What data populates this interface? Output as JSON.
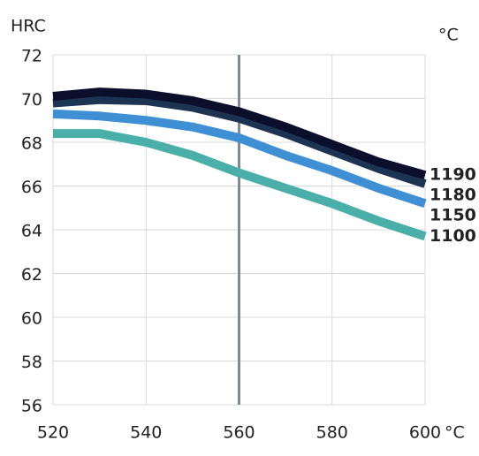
{
  "chart_data": {
    "type": "line",
    "y_label": "HRC",
    "series_unit": "°C",
    "x_unit": "°C",
    "x": [
      520,
      530,
      540,
      550,
      560,
      570,
      580,
      590,
      600
    ],
    "xlim": [
      520,
      600
    ],
    "xticks": [
      520,
      540,
      560,
      580,
      600
    ],
    "ylim": [
      56,
      72
    ],
    "yticks": [
      56,
      58,
      60,
      62,
      64,
      66,
      68,
      70,
      72
    ],
    "grid": true,
    "vline": 560,
    "series": [
      {
        "name": "1190",
        "color": "#0b0f2c",
        "label_color": "#0b0f2c",
        "values": [
          70.1,
          70.3,
          70.2,
          69.9,
          69.4,
          68.7,
          67.9,
          67.1,
          66.5
        ]
      },
      {
        "name": "1180",
        "color": "#1d3352",
        "label_color": "#5a528f",
        "values": [
          69.8,
          69.95,
          69.9,
          69.6,
          69.1,
          68.4,
          67.6,
          66.8,
          66.1
        ]
      },
      {
        "name": "1150",
        "color": "#3f8fd5",
        "label_color": "#3f8fd5",
        "values": [
          69.3,
          69.2,
          69.0,
          68.7,
          68.2,
          67.4,
          66.7,
          65.9,
          65.2
        ]
      },
      {
        "name": "1100",
        "color": "#4aaea9",
        "label_color": "#4aaea9",
        "values": [
          68.4,
          68.4,
          68.0,
          67.4,
          66.6,
          65.9,
          65.2,
          64.4,
          63.7
        ]
      }
    ]
  }
}
